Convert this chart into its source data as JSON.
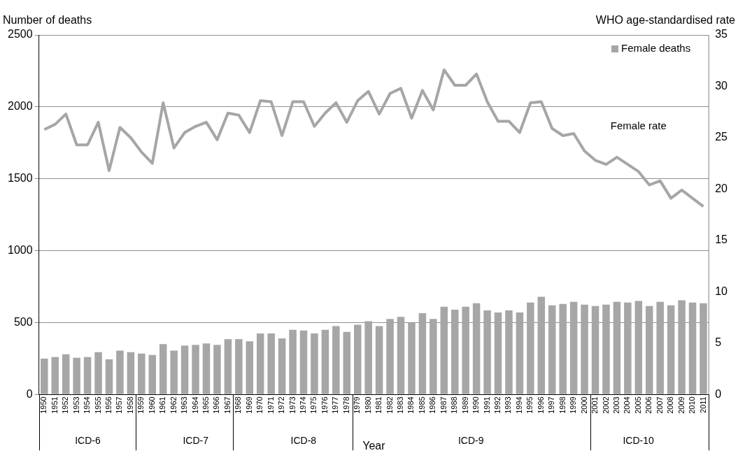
{
  "chart_data": {
    "type": "bar",
    "categories": [
      "1950",
      "1951",
      "1952",
      "1953",
      "1954",
      "1955",
      "1956",
      "1957",
      "1958",
      "1959",
      "1960",
      "1961",
      "1962",
      "1963",
      "1964",
      "1965",
      "1966",
      "1967",
      "1968",
      "1969",
      "1970",
      "1971",
      "1972",
      "1973",
      "1974",
      "1975",
      "1976",
      "1977",
      "1978",
      "1979",
      "1980",
      "1981",
      "1982",
      "1983",
      "1984",
      "1985",
      "1986",
      "1987",
      "1988",
      "1989",
      "1990",
      "1991",
      "1992",
      "1993",
      "1994",
      "1995",
      "1996",
      "1997",
      "1998",
      "1999",
      "2000",
      "2001",
      "2002",
      "2003",
      "2004",
      "2005",
      "2006",
      "2007",
      "2008",
      "2009",
      "2010",
      "2011"
    ],
    "series": [
      {
        "name": "Female deaths",
        "color": "#a6a6a6",
        "values": [
          250,
          260,
          280,
          255,
          260,
          295,
          245,
          305,
          295,
          285,
          275,
          350,
          305,
          340,
          345,
          355,
          345,
          385,
          385,
          370,
          425,
          425,
          390,
          450,
          445,
          425,
          450,
          475,
          435,
          485,
          510,
          475,
          525,
          540,
          500,
          565,
          525,
          610,
          590,
          610,
          635,
          585,
          570,
          585,
          570,
          640,
          680,
          620,
          630,
          645,
          625,
          615,
          625,
          645,
          640,
          650,
          615,
          645,
          620,
          655,
          640,
          635
        ]
      },
      {
        "name": "Female rate",
        "type": "line",
        "axis": "y2",
        "color": "#a6a6a6",
        "values": [
          25.8,
          26.3,
          27.3,
          24.3,
          24.3,
          26.5,
          21.8,
          26.0,
          25.0,
          23.6,
          22.5,
          28.4,
          24.0,
          25.5,
          26.1,
          26.5,
          24.8,
          27.4,
          27.2,
          25.5,
          28.6,
          28.5,
          25.2,
          28.5,
          28.5,
          26.1,
          27.4,
          28.4,
          26.5,
          28.6,
          29.5,
          27.3,
          29.3,
          29.8,
          26.9,
          29.6,
          27.7,
          31.6,
          30.1,
          30.1,
          31.2,
          28.5,
          26.6,
          26.6,
          25.5,
          28.4,
          28.5,
          25.9,
          25.2,
          25.4,
          23.7,
          22.8,
          22.4,
          23.1,
          22.4,
          21.7,
          20.4,
          20.8,
          19.1,
          19.9,
          19.1,
          18.3
        ]
      }
    ],
    "xlabel": "Year",
    "ylabel": "Number of deaths",
    "y2label": "WHO age-standardised rate",
    "ylim": [
      0,
      2500
    ],
    "yticks": [
      0,
      500,
      1000,
      1500,
      2000,
      2500
    ],
    "y2lim": [
      0,
      35
    ],
    "y2ticks": [
      0,
      5,
      10,
      15,
      20,
      25,
      30,
      35
    ],
    "annotations": [
      "ICD-6",
      "ICD-7",
      "ICD-8",
      "ICD-9",
      "ICD-10"
    ],
    "grid": "y",
    "legend": "top right",
    "marker": "none",
    "line_style": "solid"
  }
}
